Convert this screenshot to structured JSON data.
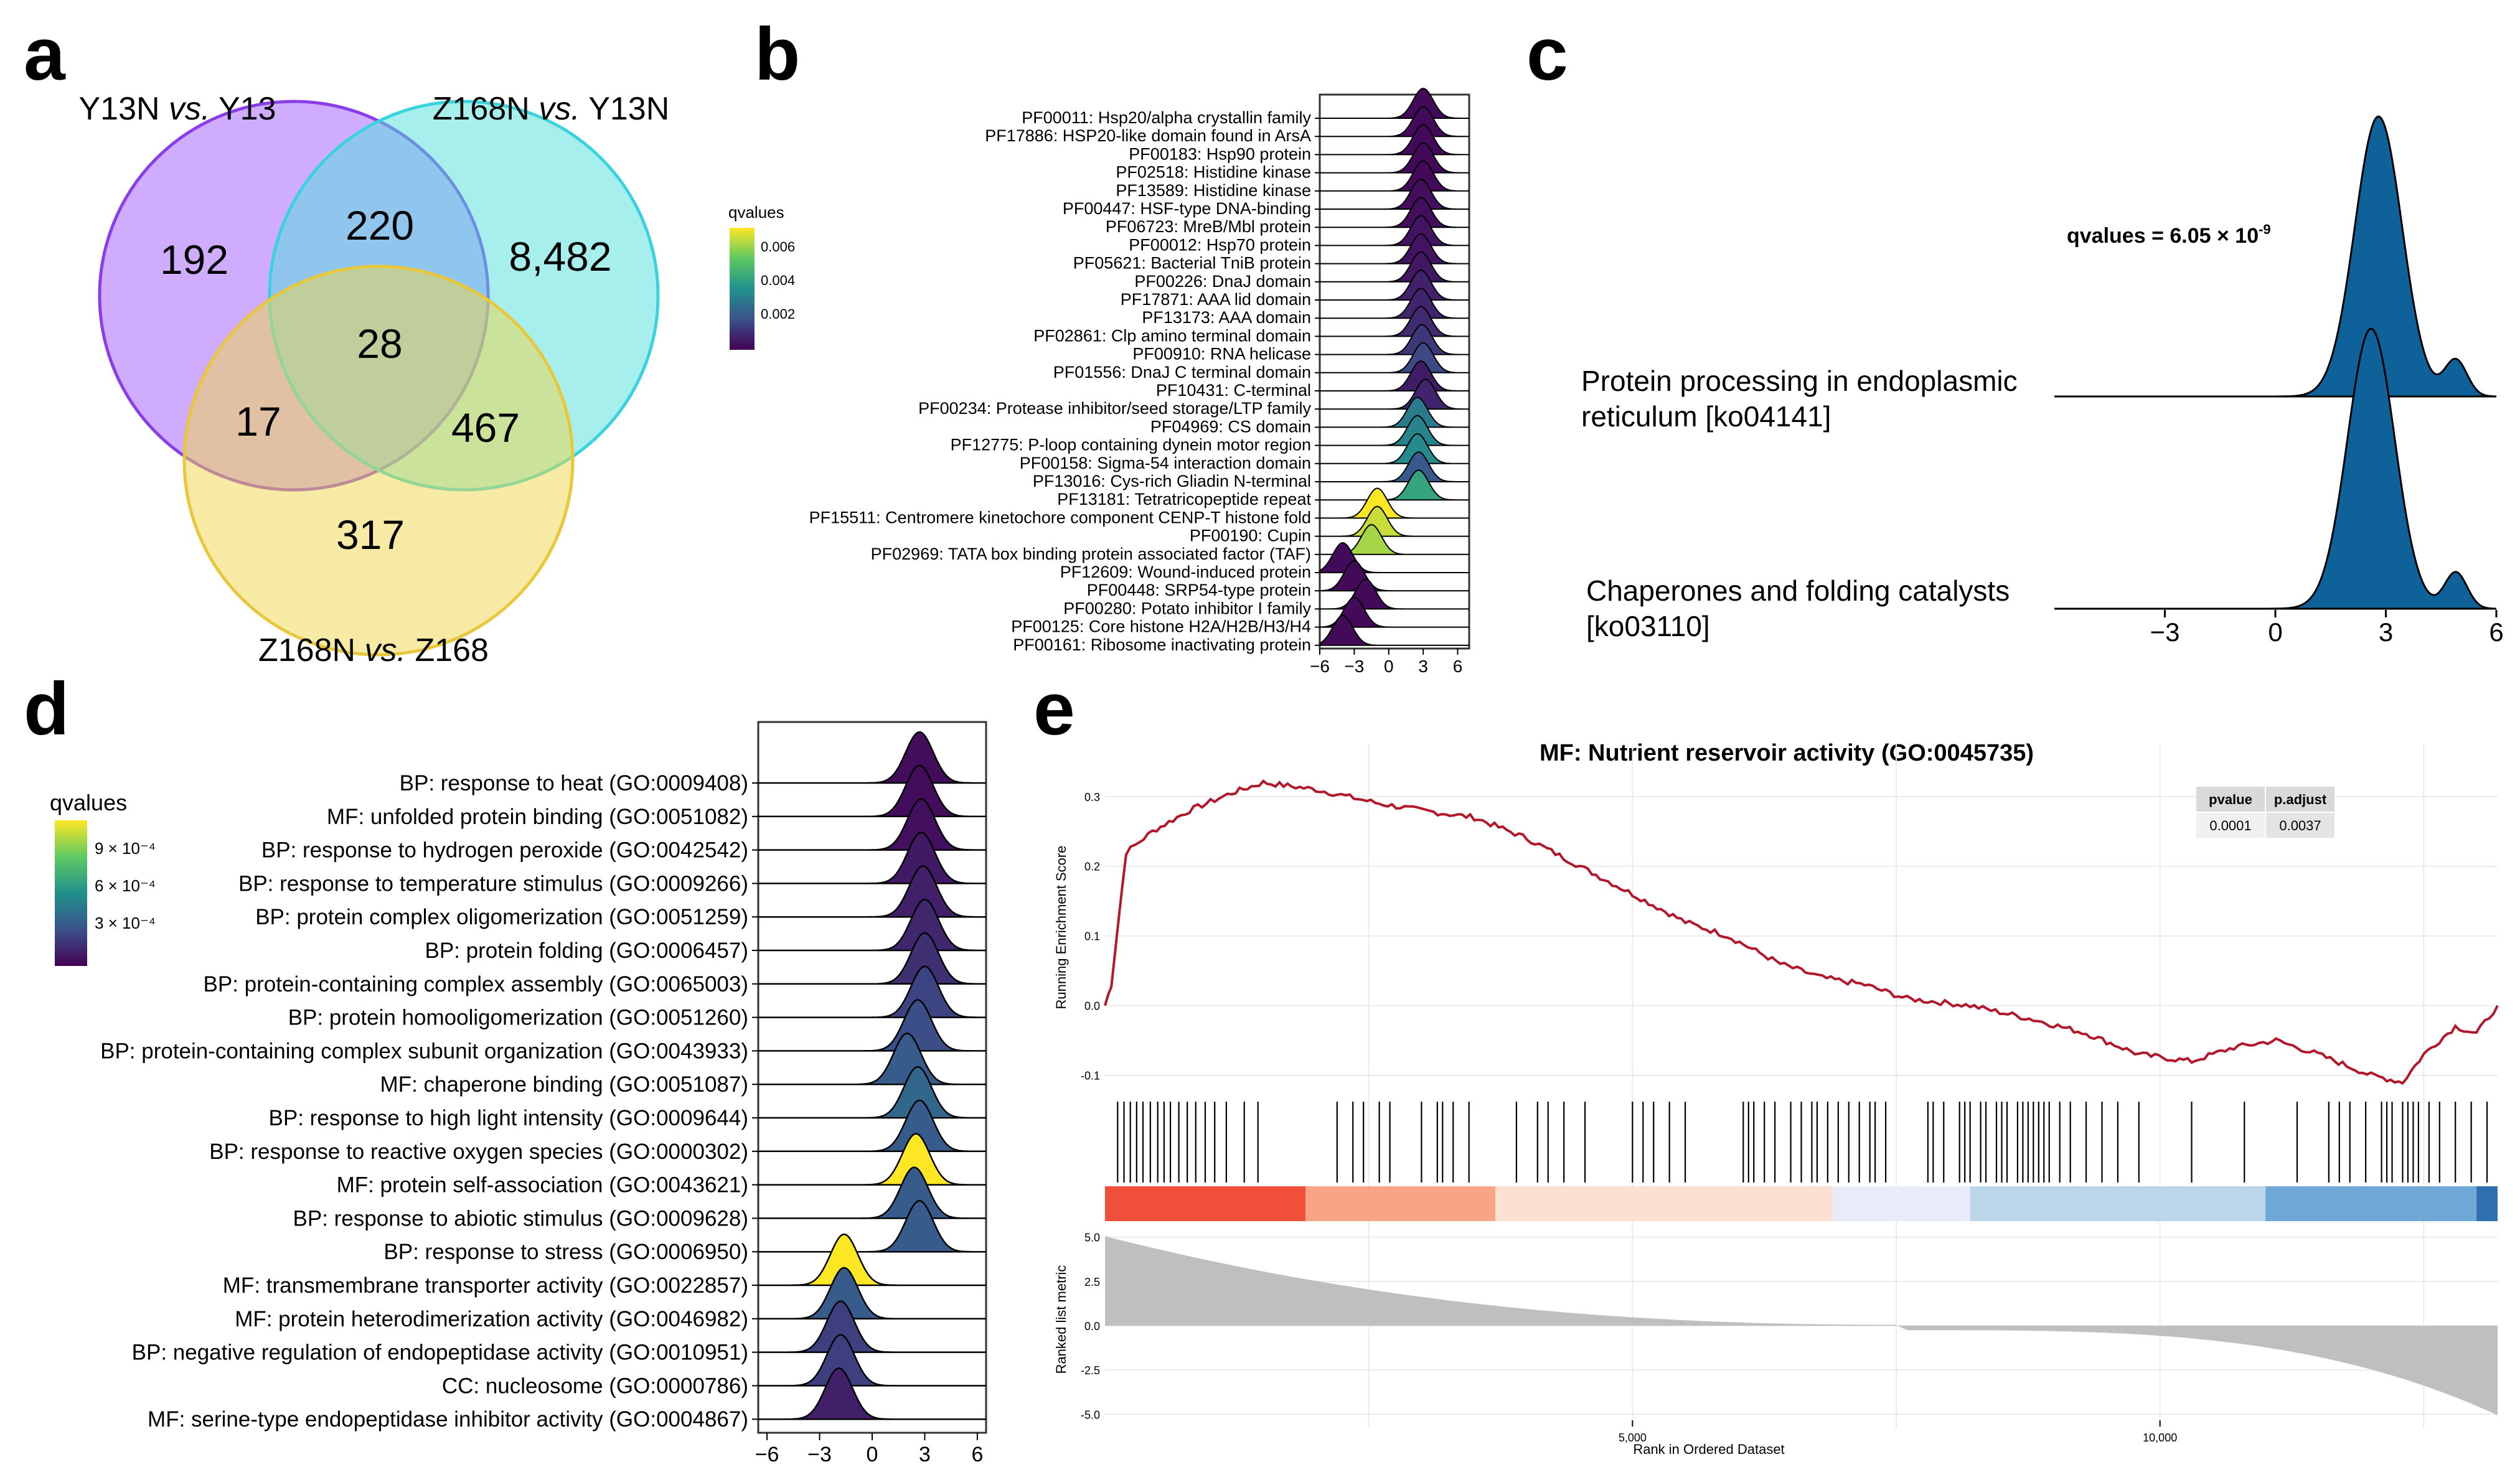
{
  "panels": {
    "a": "a",
    "b": "b",
    "c": "c",
    "d": "d",
    "e": "e"
  },
  "venn": {
    "set_labels": [
      {
        "pre": "Y13N ",
        "em": "vs.",
        "post": " Y13"
      },
      {
        "pre": "Z168N ",
        "em": "vs.",
        "post": " Y13N"
      },
      {
        "pre": "Z168N ",
        "em": "vs.",
        "post": " Z168"
      }
    ],
    "counts": {
      "a_only": "192",
      "ab": "220",
      "b_only": "8,482",
      "abc": "28",
      "ac": "17",
      "bc": "467",
      "c_only": "317"
    },
    "colors": {
      "a": "#a259ff",
      "b": "#4fe0dc",
      "c": "#efd64a"
    }
  },
  "chart_data": [
    {
      "panel": "b",
      "type": "ridgeline",
      "legend_title": "qvalues",
      "legend_ticks": [
        "0.006",
        "0.004",
        "0.002"
      ],
      "xlim": [
        -6,
        7
      ],
      "xticks": [
        "-6",
        "-3",
        "0",
        "3",
        "6"
      ],
      "rows": [
        {
          "label": "PF00011: Hsp20/alpha crystallin family",
          "peak": 3,
          "q": 0.0002
        },
        {
          "label": "PF17886: HSP20-like domain found in ArsA",
          "peak": 3,
          "q": 0.0002
        },
        {
          "label": "PF00183: Hsp90 protein",
          "peak": 3,
          "q": 0.0002
        },
        {
          "label": "PF02518: Histidine kinase",
          "peak": 3,
          "q": 0.0002
        },
        {
          "label": "PF13589: Histidine kinase",
          "peak": 3,
          "q": 0.0002
        },
        {
          "label": "PF00447: HSF-type DNA-binding",
          "peak": 2.8,
          "q": 0.0003
        },
        {
          "label": "PF06723: MreB/Mbl protein",
          "peak": 2.8,
          "q": 0.0003
        },
        {
          "label": "PF00012: Hsp70 protein",
          "peak": 2.8,
          "q": 0.0004
        },
        {
          "label": "PF05621: Bacterial TniB protein",
          "peak": 2.8,
          "q": 0.0004
        },
        {
          "label": "PF00226: DnaJ domain",
          "peak": 2.8,
          "q": 0.0005
        },
        {
          "label": "PF17871: AAA lid domain",
          "peak": 2.8,
          "q": 0.0007
        },
        {
          "label": "PF13173: AAA domain",
          "peak": 2.8,
          "q": 0.0008
        },
        {
          "label": "PF02861: Clp amino terminal domain",
          "peak": 2.8,
          "q": 0.0009
        },
        {
          "label": "PF00910: RNA helicase",
          "peak": 2.9,
          "q": 0.0012
        },
        {
          "label": "PF01556: DnaJ C terminal domain",
          "peak": 3,
          "q": 0.0016
        },
        {
          "label": "PF10431: C-terminal",
          "peak": 2.8,
          "q": 0.0006
        },
        {
          "label": "PF00234: Protease inhibitor/seed storage/LTP family",
          "peak": 3.2,
          "q": 0.0008
        },
        {
          "label": "PF04969: CS domain",
          "peak": 2.5,
          "q": 0.003
        },
        {
          "label": "PF12775: P-loop containing dynein motor region",
          "peak": 2.5,
          "q": 0.0032
        },
        {
          "label": "PF00158: Sigma-54 interaction domain",
          "peak": 2.5,
          "q": 0.0034
        },
        {
          "label": "PF13016: Cys-rich Gliadin N-terminal",
          "peak": 2.6,
          "q": 0.002
        },
        {
          "label": "PF13181: Tetratricopeptide repeat",
          "peak": 2.6,
          "q": 0.0042
        },
        {
          "label": "PF15511: Centromere kinetochore component CENP-T histone fold",
          "peak": -1,
          "q": 0.0072
        },
        {
          "label": "PF00190: Cupin",
          "peak": -1,
          "q": 0.0066
        },
        {
          "label": "PF02969: TATA box binding protein associated factor (TAF)",
          "peak": -1.5,
          "q": 0.0062
        },
        {
          "label": "PF12609: Wound-induced protein",
          "peak": -4,
          "q": 0.0002
        },
        {
          "label": "PF00448: SRP54-type protein",
          "peak": -3,
          "q": 0.0002
        },
        {
          "label": "PF00280: Potato inhibitor I family",
          "peak": -2,
          "q": 0.0002
        },
        {
          "label": "PF00125: Core histone H2A/H2B/H3/H4",
          "peak": -3,
          "q": 0.0002
        },
        {
          "label": "PF00161: Ribosome inactivating protein",
          "peak": -4,
          "q": 0.0002
        }
      ]
    },
    {
      "panel": "c",
      "type": "ridgeline",
      "annotation": {
        "text": "qvalues = 6.05 × 10",
        "sup": "-9"
      },
      "xlim": [
        -6,
        6
      ],
      "xticks": [
        "-3",
        "0",
        "3",
        "6"
      ],
      "color": "#0f6199",
      "rows": [
        {
          "label_lines": [
            "Protein processing in endoplasmic",
            "reticulum [ko04141]"
          ],
          "peak": 2.8
        },
        {
          "label_lines": [
            "Chaperones and folding catalysts",
            "[ko03110]"
          ],
          "peak": 2.6
        }
      ]
    },
    {
      "panel": "d",
      "type": "ridgeline",
      "legend_title": "qvalues",
      "legend_ticks": [
        "9 × 10⁻⁴",
        "6 × 10⁻⁴",
        "3 × 10⁻⁴"
      ],
      "xlim": [
        -6.5,
        6.5
      ],
      "xticks": [
        "-6",
        "-3",
        "0",
        "3",
        "6"
      ],
      "rows": [
        {
          "label": "BP: response to heat (GO:0009408)",
          "peak": 2.7,
          "q": 4e-05
        },
        {
          "label": "MF: unfolded protein binding (GO:0051082)",
          "peak": 2.7,
          "q": 4e-05
        },
        {
          "label": "BP: response to hydrogen peroxide (GO:0042542)",
          "peak": 2.8,
          "q": 5e-05
        },
        {
          "label": "BP: response to temperature stimulus (GO:0009266)",
          "peak": 2.8,
          "q": 8e-05
        },
        {
          "label": "BP: protein complex oligomerization (GO:0051259)",
          "peak": 2.9,
          "q": 0.0001
        },
        {
          "label": "BP: protein folding (GO:0006457)",
          "peak": 3,
          "q": 0.00012
        },
        {
          "label": "BP: protein-containing complex assembly (GO:0065003)",
          "peak": 3,
          "q": 0.00015
        },
        {
          "label": "BP: protein homooligomerization (GO:0051260)",
          "peak": 3,
          "q": 0.00022
        },
        {
          "label": "BP: protein-containing complex subunit organization (GO:0043933)",
          "peak": 2.6,
          "q": 0.00025
        },
        {
          "label": "MF: chaperone binding (GO:0051087)",
          "peak": 2,
          "q": 0.0003
        },
        {
          "label": "BP: response to high light intensity (GO:0009644)",
          "peak": 2.6,
          "q": 0.00035
        },
        {
          "label": "BP: response to reactive oxygen species (GO:0000302)",
          "peak": 2.7,
          "q": 0.0003
        },
        {
          "label": "MF: protein self-association (GO:0043621)",
          "peak": 2.5,
          "q": 0.00105
        },
        {
          "label": "BP: response to abiotic stimulus (GO:0009628)",
          "peak": 2.4,
          "q": 0.0003
        },
        {
          "label": "BP: response to stress (GO:0006950)",
          "peak": 2.7,
          "q": 0.0003
        },
        {
          "label": "MF: transmembrane transporter activity (GO:0022857)",
          "peak": -1.6,
          "q": 0.00105
        },
        {
          "label": "MF: protein heterodimerization activity (GO:0046982)",
          "peak": -1.6,
          "q": 0.0003
        },
        {
          "label": "BP: negative regulation of endopeptidase activity (GO:0010951)",
          "peak": -1.8,
          "q": 0.0002
        },
        {
          "label": "CC: nucleosome (GO:0000786)",
          "peak": -1.8,
          "q": 0.0002
        },
        {
          "label": "MF: serine-type endopeptidase inhibitor activity (GO:0004867)",
          "peak": -1.9,
          "q": 0.0001
        }
      ]
    },
    {
      "panel": "e",
      "type": "gsea",
      "title": "MF: Nutrient reservoir activity (GO:0045735)",
      "ylabel_top": "Running Enrichment Score",
      "ylabel_bottom": "Ranked list metric",
      "xlabel": "Rank in Ordered Dataset",
      "xlim": [
        0,
        13200
      ],
      "es_ylim": [
        -0.12,
        0.34
      ],
      "es_ticks": [
        "0.3",
        "0.2",
        "0.1",
        "0.0",
        "-0.1"
      ],
      "metric_ylim": [
        -5.2,
        5.2
      ],
      "metric_ticks": [
        "5.0",
        "2.5",
        "0.0",
        "-2.5",
        "-5.0"
      ],
      "xticks": [
        "5,000",
        "10,000"
      ],
      "es_curve": [
        [
          0,
          0.0
        ],
        [
          60,
          0.03
        ],
        [
          200,
          0.22
        ],
        [
          450,
          0.25
        ],
        [
          800,
          0.28
        ],
        [
          1200,
          0.305
        ],
        [
          1500,
          0.32
        ],
        [
          2000,
          0.31
        ],
        [
          2600,
          0.29
        ],
        [
          3000,
          0.28
        ],
        [
          3500,
          0.27
        ],
        [
          4000,
          0.24
        ],
        [
          4500,
          0.2
        ],
        [
          5000,
          0.16
        ],
        [
          5500,
          0.12
        ],
        [
          5900,
          0.1
        ],
        [
          6400,
          0.06
        ],
        [
          6800,
          0.04
        ],
        [
          7200,
          0.03
        ],
        [
          7600,
          0.01
        ],
        [
          8200,
          0.0
        ],
        [
          8800,
          -0.02
        ],
        [
          9300,
          -0.04
        ],
        [
          9800,
          -0.07
        ],
        [
          10300,
          -0.08
        ],
        [
          10700,
          -0.06
        ],
        [
          11100,
          -0.05
        ],
        [
          11500,
          -0.07
        ],
        [
          12000,
          -0.1
        ],
        [
          12300,
          -0.11
        ],
        [
          12500,
          -0.07
        ],
        [
          12800,
          -0.03
        ],
        [
          13000,
          -0.04
        ],
        [
          13200,
          0.0
        ]
      ],
      "table": {
        "headers": [
          "pvalue",
          "p.adjust"
        ],
        "values": [
          "0.0001",
          "0.0037"
        ]
      },
      "hit_ranks": [
        120,
        180,
        240,
        300,
        360,
        430,
        500,
        560,
        620,
        700,
        780,
        860,
        950,
        1040,
        1150,
        1320,
        1450,
        2200,
        2350,
        2450,
        2600,
        2700,
        3000,
        3150,
        3200,
        3300,
        3450,
        3900,
        4100,
        4200,
        4350,
        4550,
        5000,
        5100,
        5200,
        5350,
        5500,
        6050,
        6100,
        6150,
        6250,
        6350,
        6500,
        6600,
        6700,
        6750,
        6850,
        6950,
        7050,
        7150,
        7250,
        7300,
        7400,
        7800,
        7850,
        7950,
        8100,
        8150,
        8200,
        8300,
        8350,
        8450,
        8500,
        8550,
        8650,
        8700,
        8750,
        8800,
        8850,
        8900,
        8950,
        9050,
        9150,
        9300,
        9450,
        9600,
        9800,
        10300,
        10800,
        11300,
        11600,
        11700,
        11800,
        11950,
        12100,
        12150,
        12200,
        12300,
        12350,
        12400,
        12450,
        12550,
        12650,
        12800,
        12950,
        13100
      ]
    }
  ]
}
